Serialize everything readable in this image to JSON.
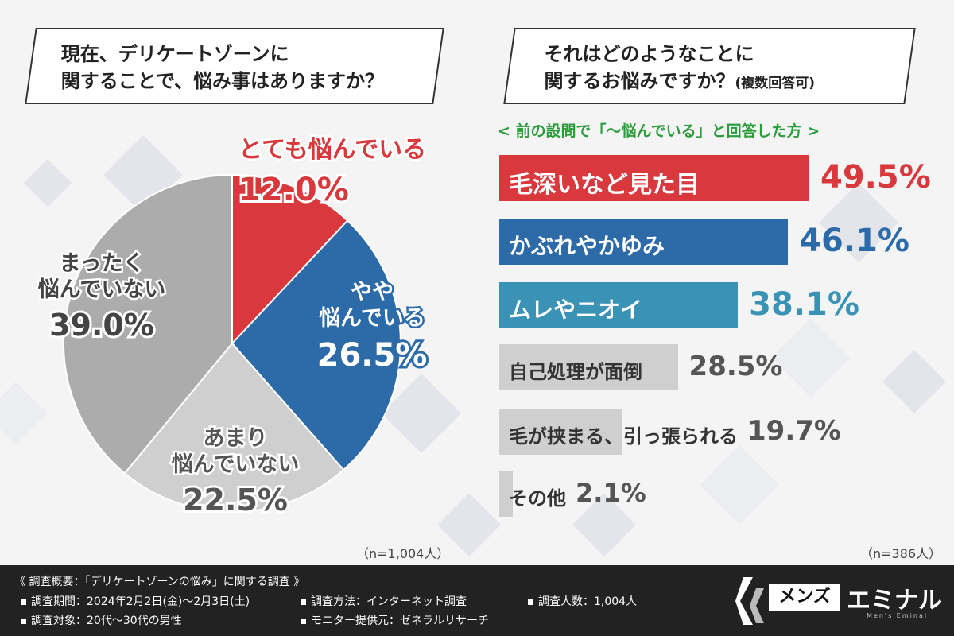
{
  "left": {
    "question_line1": "現在、デリケートゾーンに",
    "question_line2": "関することで、悩み事はありますか？",
    "n": "（n=1,004人）"
  },
  "right": {
    "question_line1": "それはどのようなことに",
    "question_line2": "関するお悩みですか？",
    "question_note": "(複数回答可)",
    "subnote": "< 前の設問で「～悩んでいる」と回答した方 >",
    "n": "（n=386人）"
  },
  "chart_data": [
    {
      "type": "pie",
      "slices": [
        {
          "label_lines": [
            "とても悩んでいる"
          ],
          "value": 12.0,
          "value_text": "12.0%",
          "color": "#d9393c"
        },
        {
          "label_lines": [
            "やや",
            "悩んでいる"
          ],
          "value": 26.5,
          "value_text": "26.5%",
          "color": "#2c6aa8"
        },
        {
          "label_lines": [
            "あまり",
            "悩んでいない"
          ],
          "value": 22.5,
          "value_text": "22.5%",
          "color": "#cfcfcf"
        },
        {
          "label_lines": [
            "まったく",
            "悩んでいない"
          ],
          "value": 39.0,
          "value_text": "39.0%",
          "color": "#acacac"
        }
      ]
    },
    {
      "type": "bar",
      "orientation": "horizontal",
      "categories": [
        "毛深いなど見た目",
        "かぶれやかゆみ",
        "ムレやニオイ",
        "自己処理が面倒",
        "毛が挟まる、引っ張られる",
        "その他"
      ],
      "values": [
        49.5,
        46.1,
        38.1,
        28.5,
        19.7,
        2.1
      ],
      "value_texts": [
        "49.5%",
        "46.1%",
        "38.1%",
        "28.5%",
        "19.7%",
        "2.1%"
      ],
      "colors": [
        "#d9393c",
        "#2c6aa8",
        "#3a93b5",
        "#cfcfcf",
        "#cfcfcf",
        "#cfcfcf"
      ],
      "value_colors": [
        "#d9393c",
        "#2c6aa8",
        "#3a93b5",
        "#555555",
        "#555555",
        "#555555"
      ],
      "label_colors": [
        "#ffffff",
        "#ffffff",
        "#ffffff",
        "#333333",
        "#333333",
        "#333333"
      ]
    }
  ],
  "footer": {
    "title": "《 調査概要：「デリケートゾーンの悩み」に関する調査 》",
    "period": "調査期間：2024年2月2日(金)～2月3日(土)",
    "method": "調査方法：インターネット調査",
    "count": "調査人数：1,004人",
    "target": "調査対象：20代～30代の男性",
    "provider": "モニター提供元：ゼネラルリサーチ"
  },
  "logo": {
    "part1": "メンズ",
    "part2": "エミナル",
    "sub": "Men's Eminal"
  }
}
